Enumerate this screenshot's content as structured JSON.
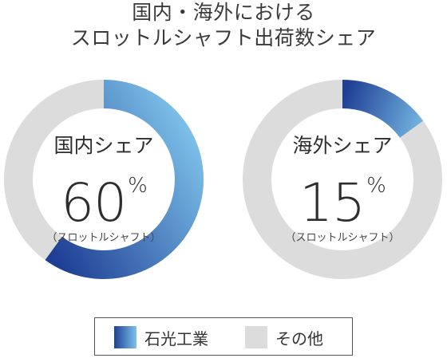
{
  "chart_data": [
    {
      "type": "pie",
      "title": "国内・海外における",
      "subtitle": "スロットルシャフト出荷数シェア",
      "center_label": "国内シェア",
      "center_value": "60",
      "center_unit": "%",
      "center_sub": "（スロットルシャフト）",
      "slices": [
        {
          "label": "石光工業",
          "value": 60
        },
        {
          "label": "その他",
          "value": 40
        }
      ]
    },
    {
      "type": "pie",
      "center_label": "海外シェア",
      "center_value": "15",
      "center_unit": "%",
      "center_sub": "（スロットルシャフト）",
      "slices": [
        {
          "label": "石光工業",
          "value": 15
        },
        {
          "label": "その他",
          "value": 85
        }
      ]
    }
  ],
  "legend": [
    {
      "label": "石光工業",
      "color_start": "#1f3f95",
      "color_end": "#7ec3ea"
    },
    {
      "label": "その他",
      "color": "#dcdcdc"
    }
  ],
  "colors": {
    "other": "#dcdcdc",
    "accent_start": "#1f3f95",
    "accent_end": "#7ec3ea"
  }
}
